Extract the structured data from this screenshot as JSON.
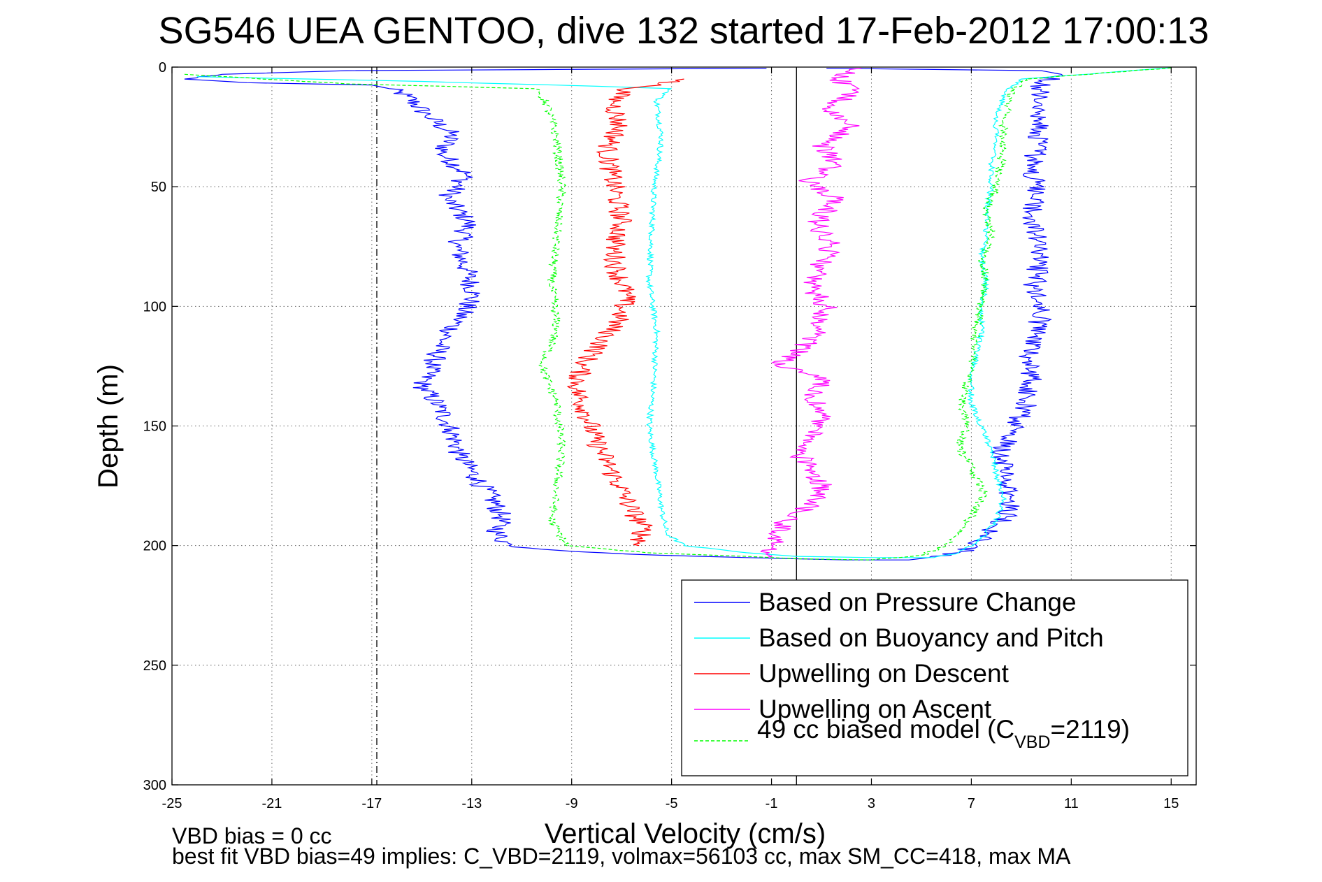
{
  "chart_data": {
    "type": "line",
    "title": "SG546 UEA GENTOO, dive 132 started 17-Feb-2012 17:00:13",
    "xlabel": "Vertical Velocity (cm/s)",
    "ylabel": "Depth (m)",
    "xlim": [
      -25,
      16
    ],
    "ylim": [
      0,
      300
    ],
    "y_reversed": true,
    "grid": true,
    "legend_placement": "bottom-right",
    "xticks": [
      -25,
      -21,
      -17,
      -13,
      -9,
      -5,
      -1,
      3,
      7,
      11,
      15
    ],
    "yticks": [
      0,
      50,
      100,
      150,
      200,
      250,
      300
    ],
    "reference_lines": [
      {
        "x": -16.8,
        "style": "dash-dot"
      },
      {
        "x": 0,
        "style": "solid"
      }
    ],
    "series": [
      {
        "name": "Based on Pressure Change",
        "color": "#0000ff",
        "points": [
          [
            -1.2,
            0.5
          ],
          [
            -18,
            1.5
          ],
          [
            -23,
            3
          ],
          [
            -24.5,
            5
          ],
          [
            -22,
            6.5
          ],
          [
            -17,
            7.5
          ],
          [
            -16.3,
            9
          ],
          [
            -15.6,
            12
          ],
          [
            -14.8,
            20
          ],
          [
            -13.8,
            28
          ],
          [
            -14.2,
            36
          ],
          [
            -13.2,
            45
          ],
          [
            -14,
            55
          ],
          [
            -13.1,
            65
          ],
          [
            -13.6,
            75
          ],
          [
            -13.2,
            85
          ],
          [
            -12.9,
            95
          ],
          [
            -13.5,
            105
          ],
          [
            -14.2,
            115
          ],
          [
            -14.6,
            125
          ],
          [
            -15,
            133
          ],
          [
            -14.3,
            142
          ],
          [
            -13.8,
            152
          ],
          [
            -13.5,
            162
          ],
          [
            -12.8,
            172
          ],
          [
            -12.2,
            180
          ],
          [
            -11.8,
            188
          ],
          [
            -12,
            195
          ],
          [
            -11.5,
            200
          ],
          [
            -9.5,
            202
          ],
          [
            -5.5,
            204
          ],
          [
            -2,
            205
          ],
          [
            0,
            205.5
          ],
          [
            2,
            206
          ],
          [
            4.5,
            206
          ],
          [
            5.3,
            205
          ],
          [
            6.5,
            203
          ],
          [
            7.2,
            200
          ],
          [
            7.7,
            195
          ],
          [
            8.4,
            188
          ],
          [
            8.6,
            180
          ],
          [
            8.3,
            172
          ],
          [
            8.2,
            162
          ],
          [
            8.6,
            152
          ],
          [
            9.2,
            142
          ],
          [
            9.4,
            132
          ],
          [
            9.3,
            122
          ],
          [
            9.6,
            112
          ],
          [
            9.8,
            102
          ],
          [
            9.5,
            92
          ],
          [
            9.7,
            82
          ],
          [
            9.6,
            72
          ],
          [
            9.4,
            62
          ],
          [
            9.6,
            52
          ],
          [
            9.4,
            42
          ],
          [
            9.7,
            32
          ],
          [
            9.8,
            22
          ],
          [
            9.7,
            12
          ],
          [
            9.8,
            7
          ],
          [
            10.6,
            3
          ],
          [
            9.8,
            1.5
          ],
          [
            1.2,
            0.5
          ]
        ]
      },
      {
        "name": "Based on Buoyancy and Pitch",
        "color": "#00ffff",
        "points": [
          [
            -24,
            4
          ],
          [
            -15,
            6
          ],
          [
            -8,
            8
          ],
          [
            -5,
            9
          ],
          [
            -5.6,
            14
          ],
          [
            -5.4,
            30
          ],
          [
            -5.7,
            50
          ],
          [
            -5.8,
            70
          ],
          [
            -5.9,
            90
          ],
          [
            -5.6,
            110
          ],
          [
            -5.7,
            130
          ],
          [
            -5.9,
            150
          ],
          [
            -5.6,
            170
          ],
          [
            -5.4,
            185
          ],
          [
            -5.2,
            195
          ],
          [
            -4.5,
            200
          ],
          [
            -2,
            203
          ],
          [
            0,
            204.5
          ],
          [
            3,
            205
          ],
          [
            5.5,
            205
          ],
          [
            6.5,
            203
          ],
          [
            7.3,
            198
          ],
          [
            8,
            190
          ],
          [
            8.3,
            180
          ],
          [
            8,
            170
          ],
          [
            7.8,
            160
          ],
          [
            7.4,
            150
          ],
          [
            7,
            140
          ],
          [
            7,
            130
          ],
          [
            7.2,
            120
          ],
          [
            7.4,
            110
          ],
          [
            7.4,
            100
          ],
          [
            7.6,
            90
          ],
          [
            7.4,
            80
          ],
          [
            7.6,
            70
          ],
          [
            7.6,
            60
          ],
          [
            7.8,
            50
          ],
          [
            7.8,
            40
          ],
          [
            8,
            30
          ],
          [
            8,
            20
          ],
          [
            8.4,
            10
          ],
          [
            9,
            5
          ],
          [
            15,
            0.3
          ]
        ]
      },
      {
        "name": "Upwelling on Descent",
        "color": "#ff0000",
        "points": [
          [
            -4.5,
            5
          ],
          [
            -6,
            8
          ],
          [
            -7,
            10
          ],
          [
            -7.3,
            15
          ],
          [
            -7.1,
            25
          ],
          [
            -7.6,
            35
          ],
          [
            -7.4,
            45
          ],
          [
            -7.2,
            55
          ],
          [
            -7,
            65
          ],
          [
            -7.3,
            75
          ],
          [
            -7.2,
            85
          ],
          [
            -6.8,
            95
          ],
          [
            -7.1,
            105
          ],
          [
            -7.8,
            115
          ],
          [
            -8.6,
            125
          ],
          [
            -8.8,
            135
          ],
          [
            -8.4,
            145
          ],
          [
            -8.1,
            155
          ],
          [
            -7.6,
            165
          ],
          [
            -7.1,
            175
          ],
          [
            -6.6,
            185
          ],
          [
            -6.1,
            193
          ],
          [
            -6.3,
            200
          ]
        ]
      },
      {
        "name": "Upwelling on Ascent",
        "color": "#ff00ff",
        "points": [
          [
            -1.2,
            205
          ],
          [
            -0.8,
            198
          ],
          [
            -0.6,
            190
          ],
          [
            0.8,
            182
          ],
          [
            1,
            175
          ],
          [
            0.6,
            168
          ],
          [
            0,
            160
          ],
          [
            0.8,
            152
          ],
          [
            1.2,
            145
          ],
          [
            0.6,
            138
          ],
          [
            1.2,
            130
          ],
          [
            -0.8,
            125
          ],
          [
            0.2,
            118
          ],
          [
            0.8,
            110
          ],
          [
            1.2,
            100
          ],
          [
            0.6,
            92
          ],
          [
            0.8,
            85
          ],
          [
            1.4,
            75
          ],
          [
            0.8,
            65
          ],
          [
            1.6,
            55
          ],
          [
            0.4,
            48
          ],
          [
            1.6,
            40
          ],
          [
            1,
            32
          ],
          [
            2.2,
            25
          ],
          [
            1.2,
            18
          ],
          [
            2.4,
            10
          ],
          [
            1.6,
            5
          ],
          [
            2.6,
            0.5
          ]
        ]
      },
      {
        "name": "49 cc biased model (C_VBD=2119)",
        "color": "#00ff00",
        "style": "dashed",
        "points": [
          [
            -24.5,
            3
          ],
          [
            -18,
            7
          ],
          [
            -10.5,
            9
          ],
          [
            -10,
            15
          ],
          [
            -9.6,
            30
          ],
          [
            -9.4,
            50
          ],
          [
            -9.6,
            70
          ],
          [
            -9.8,
            90
          ],
          [
            -9.6,
            110
          ],
          [
            -10.2,
            125
          ],
          [
            -9.6,
            140
          ],
          [
            -9.4,
            160
          ],
          [
            -9.6,
            175
          ],
          [
            -9.8,
            190
          ],
          [
            -9.2,
            200
          ],
          [
            -6,
            203
          ],
          [
            -2,
            204.5
          ],
          [
            0,
            205.5
          ],
          [
            3,
            206
          ],
          [
            5,
            204
          ],
          [
            6,
            200
          ],
          [
            6.5,
            195
          ],
          [
            7,
            188
          ],
          [
            7.5,
            178
          ],
          [
            7,
            168
          ],
          [
            6.5,
            158
          ],
          [
            6.8,
            150
          ],
          [
            6.6,
            140
          ],
          [
            6.9,
            130
          ],
          [
            7.1,
            120
          ],
          [
            7.2,
            110
          ],
          [
            7.4,
            100
          ],
          [
            7.6,
            90
          ],
          [
            7.4,
            80
          ],
          [
            7.8,
            70
          ],
          [
            7.6,
            60
          ],
          [
            8,
            50
          ],
          [
            8.2,
            40
          ],
          [
            8.2,
            30
          ],
          [
            8.4,
            20
          ],
          [
            8.6,
            10
          ],
          [
            9.2,
            5
          ],
          [
            15,
            0.3
          ]
        ]
      }
    ],
    "legend_label_parts": {
      "prefix": "49 cc biased model (C",
      "sub": "VBD",
      "suffix": "=2119)"
    },
    "footer": [
      "VBD bias = 0 cc",
      "best fit VBD bias=49 implies: C_VBD=2119, volmax=56103 cc, max SM_CC=418, max MA"
    ]
  }
}
